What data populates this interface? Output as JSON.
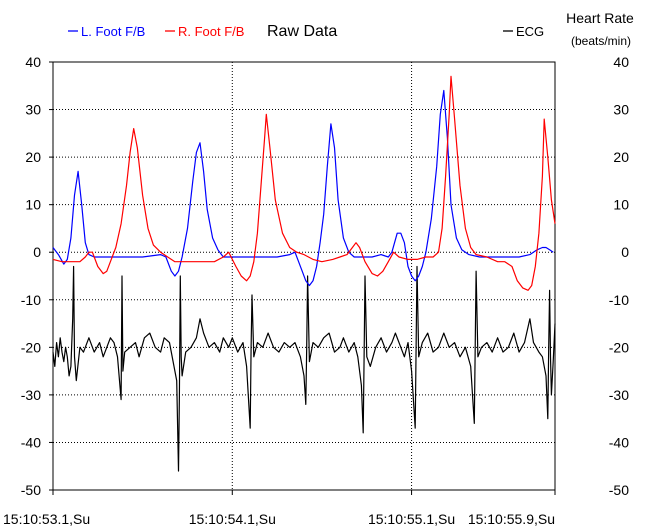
{
  "chart_data": {
    "type": "line",
    "title": "Raw Data",
    "left_ylim": [
      -50,
      40
    ],
    "right_ylim": [
      -50,
      40
    ],
    "y_ticks": [
      40,
      30,
      20,
      10,
      0,
      -10,
      -20,
      -30,
      -40,
      -50
    ],
    "right_axis_label": "Heart Rate",
    "right_axis_unit": "(beats/min)",
    "x_range": [
      53.1,
      55.9
    ],
    "x_ticks": [
      {
        "t": 53.1,
        "label": "15:10:53.1,Su"
      },
      {
        "t": 54.1,
        "label": "15:10:54.1,Su"
      },
      {
        "t": 55.1,
        "label": "15:10:55.1,Su"
      },
      {
        "t": 55.9,
        "label": "15:10:55.9,Su"
      }
    ],
    "grid": true,
    "series": [
      {
        "name": "L. Foot F/B",
        "color": "#0000ff",
        "points": [
          [
            53.1,
            1
          ],
          [
            53.13,
            -0.5
          ],
          [
            53.16,
            -2.5
          ],
          [
            53.18,
            -1.5
          ],
          [
            53.2,
            3
          ],
          [
            53.22,
            12
          ],
          [
            53.24,
            17
          ],
          [
            53.26,
            10
          ],
          [
            53.28,
            2
          ],
          [
            53.3,
            -0.5
          ],
          [
            53.33,
            -1
          ],
          [
            53.4,
            -1
          ],
          [
            53.5,
            -1
          ],
          [
            53.6,
            -1
          ],
          [
            53.7,
            -0.5
          ],
          [
            53.73,
            -1
          ],
          [
            53.76,
            -4
          ],
          [
            53.78,
            -5
          ],
          [
            53.8,
            -4
          ],
          [
            53.82,
            -1
          ],
          [
            53.85,
            5
          ],
          [
            53.88,
            15
          ],
          [
            53.9,
            21
          ],
          [
            53.92,
            23
          ],
          [
            53.94,
            17
          ],
          [
            53.96,
            9
          ],
          [
            53.99,
            3
          ],
          [
            54.02,
            0.5
          ],
          [
            54.05,
            -1
          ],
          [
            54.15,
            -1
          ],
          [
            54.25,
            -1
          ],
          [
            54.35,
            -1
          ],
          [
            54.42,
            -0.5
          ],
          [
            54.45,
            0
          ],
          [
            54.49,
            -4
          ],
          [
            54.51,
            -6
          ],
          [
            54.53,
            -7
          ],
          [
            54.55,
            -6
          ],
          [
            54.57,
            -3
          ],
          [
            54.59,
            2
          ],
          [
            54.61,
            8
          ],
          [
            54.63,
            18
          ],
          [
            54.65,
            27
          ],
          [
            54.67,
            22
          ],
          [
            54.69,
            11
          ],
          [
            54.72,
            3
          ],
          [
            54.75,
            0
          ],
          [
            54.78,
            -1
          ],
          [
            54.83,
            -1
          ],
          [
            54.88,
            -1
          ],
          [
            54.93,
            -0.5
          ],
          [
            54.97,
            -1
          ],
          [
            54.99,
            0
          ],
          [
            55.02,
            4
          ],
          [
            55.04,
            4
          ],
          [
            55.06,
            2
          ],
          [
            55.08,
            -3
          ],
          [
            55.1,
            -5
          ],
          [
            55.12,
            -6
          ],
          [
            55.14,
            -5
          ],
          [
            55.16,
            -3
          ],
          [
            55.18,
            0
          ],
          [
            55.21,
            7
          ],
          [
            55.24,
            18
          ],
          [
            55.26,
            29
          ],
          [
            55.28,
            34
          ],
          [
            55.3,
            24
          ],
          [
            55.32,
            10
          ],
          [
            55.35,
            3
          ],
          [
            55.38,
            0.5
          ],
          [
            55.42,
            -0.5
          ],
          [
            55.48,
            -1
          ],
          [
            55.55,
            -1
          ],
          [
            55.62,
            -1
          ],
          [
            55.7,
            -1
          ],
          [
            55.76,
            -0.5
          ],
          [
            55.8,
            0.5
          ],
          [
            55.83,
            1
          ],
          [
            55.85,
            1
          ],
          [
            55.87,
            0.5
          ],
          [
            55.89,
            0
          ]
        ]
      },
      {
        "name": "R. Foot F/B",
        "color": "#ff0000",
        "points": [
          [
            53.1,
            -1.5
          ],
          [
            53.15,
            -2
          ],
          [
            53.2,
            -2
          ],
          [
            53.25,
            -2
          ],
          [
            53.28,
            -1
          ],
          [
            53.3,
            0
          ],
          [
            53.32,
            0
          ],
          [
            53.35,
            -3
          ],
          [
            53.38,
            -4.5
          ],
          [
            53.4,
            -4
          ],
          [
            53.42,
            -2
          ],
          [
            53.45,
            1
          ],
          [
            53.48,
            6
          ],
          [
            53.51,
            14
          ],
          [
            53.53,
            21
          ],
          [
            53.55,
            26
          ],
          [
            53.57,
            22
          ],
          [
            53.6,
            12
          ],
          [
            53.63,
            5
          ],
          [
            53.66,
            1.5
          ],
          [
            53.7,
            0
          ],
          [
            53.74,
            -1
          ],
          [
            53.78,
            -2
          ],
          [
            53.85,
            -2
          ],
          [
            53.92,
            -2
          ],
          [
            54.0,
            -2
          ],
          [
            54.05,
            -1
          ],
          [
            54.08,
            0
          ],
          [
            54.12,
            -3
          ],
          [
            54.15,
            -5
          ],
          [
            54.18,
            -6
          ],
          [
            54.2,
            -5
          ],
          [
            54.22,
            -2
          ],
          [
            54.24,
            4
          ],
          [
            54.26,
            14
          ],
          [
            54.28,
            24
          ],
          [
            54.29,
            29
          ],
          [
            54.31,
            22
          ],
          [
            54.34,
            11
          ],
          [
            54.38,
            4
          ],
          [
            54.42,
            1
          ],
          [
            54.46,
            0
          ],
          [
            54.5,
            -0.5
          ],
          [
            54.55,
            -1.5
          ],
          [
            54.6,
            -2
          ],
          [
            54.66,
            -1.5
          ],
          [
            54.7,
            -1
          ],
          [
            54.74,
            -0.5
          ],
          [
            54.77,
            1
          ],
          [
            54.79,
            2
          ],
          [
            54.81,
            1
          ],
          [
            54.84,
            -2
          ],
          [
            54.88,
            -4.5
          ],
          [
            54.91,
            -5
          ],
          [
            54.94,
            -4
          ],
          [
            54.97,
            -2
          ],
          [
            55.0,
            0
          ],
          [
            55.03,
            -1
          ],
          [
            55.08,
            -1.5
          ],
          [
            55.13,
            -1.5
          ],
          [
            55.18,
            -1
          ],
          [
            55.22,
            -1
          ],
          [
            55.25,
            0
          ],
          [
            55.27,
            5
          ],
          [
            55.29,
            16
          ],
          [
            55.31,
            29
          ],
          [
            55.32,
            37
          ],
          [
            55.34,
            28
          ],
          [
            55.37,
            14
          ],
          [
            55.4,
            5
          ],
          [
            55.43,
            1
          ],
          [
            55.46,
            -0.5
          ],
          [
            55.52,
            -1
          ],
          [
            55.58,
            -2
          ],
          [
            55.62,
            -2
          ],
          [
            55.66,
            -3
          ],
          [
            55.69,
            -6
          ],
          [
            55.72,
            -7.5
          ],
          [
            55.75,
            -8
          ],
          [
            55.77,
            -7
          ],
          [
            55.79,
            -3
          ],
          [
            55.81,
            4
          ],
          [
            55.83,
            16
          ],
          [
            55.84,
            28
          ],
          [
            55.86,
            20
          ],
          [
            55.88,
            11
          ],
          [
            55.9,
            6
          ]
        ]
      },
      {
        "name": "ECG",
        "color": "#000000",
        "points": [
          [
            53.1,
            -21
          ],
          [
            53.11,
            -24
          ],
          [
            53.12,
            -19
          ],
          [
            53.13,
            -22
          ],
          [
            53.14,
            -18
          ],
          [
            53.15,
            -21
          ],
          [
            53.16,
            -23
          ],
          [
            53.17,
            -20
          ],
          [
            53.18,
            -22
          ],
          [
            53.19,
            -26
          ],
          [
            53.2,
            -24
          ],
          [
            53.21,
            -14
          ],
          [
            53.215,
            -3
          ],
          [
            53.22,
            -22
          ],
          [
            53.23,
            -27
          ],
          [
            53.25,
            -20
          ],
          [
            53.27,
            -21
          ],
          [
            53.3,
            -18
          ],
          [
            53.33,
            -21
          ],
          [
            53.36,
            -19
          ],
          [
            53.38,
            -22
          ],
          [
            53.4,
            -20
          ],
          [
            53.42,
            -18
          ],
          [
            53.44,
            -19
          ],
          [
            53.46,
            -22
          ],
          [
            53.48,
            -31
          ],
          [
            53.485,
            -5
          ],
          [
            53.49,
            -25
          ],
          [
            53.5,
            -21
          ],
          [
            53.53,
            -20
          ],
          [
            53.56,
            -19
          ],
          [
            53.58,
            -22
          ],
          [
            53.61,
            -18
          ],
          [
            53.64,
            -17
          ],
          [
            53.67,
            -20
          ],
          [
            53.7,
            -21
          ],
          [
            53.72,
            -18
          ],
          [
            53.75,
            -19
          ],
          [
            53.77,
            -23
          ],
          [
            53.79,
            -27
          ],
          [
            53.8,
            -46
          ],
          [
            53.805,
            -30
          ],
          [
            53.81,
            -5
          ],
          [
            53.815,
            -22
          ],
          [
            53.82,
            -26
          ],
          [
            53.84,
            -21
          ],
          [
            53.87,
            -20
          ],
          [
            53.9,
            -18
          ],
          [
            53.92,
            -14
          ],
          [
            53.94,
            -17
          ],
          [
            53.97,
            -20
          ],
          [
            54.0,
            -19
          ],
          [
            54.03,
            -21
          ],
          [
            54.05,
            -18
          ],
          [
            54.08,
            -20
          ],
          [
            54.1,
            -18
          ],
          [
            54.13,
            -21
          ],
          [
            54.16,
            -19
          ],
          [
            54.18,
            -24
          ],
          [
            54.2,
            -37
          ],
          [
            54.205,
            -20
          ],
          [
            54.21,
            -9
          ],
          [
            54.22,
            -22
          ],
          [
            54.24,
            -19
          ],
          [
            54.27,
            -20
          ],
          [
            54.3,
            -17
          ],
          [
            54.33,
            -20
          ],
          [
            54.36,
            -21
          ],
          [
            54.39,
            -19
          ],
          [
            54.42,
            -20
          ],
          [
            54.45,
            -19
          ],
          [
            54.48,
            -22
          ],
          [
            54.5,
            -26
          ],
          [
            54.51,
            -32
          ],
          [
            54.515,
            -20
          ],
          [
            54.52,
            -5
          ],
          [
            54.53,
            -23
          ],
          [
            54.55,
            -19
          ],
          [
            54.58,
            -20
          ],
          [
            54.61,
            -18
          ],
          [
            54.64,
            -17
          ],
          [
            54.67,
            -21
          ],
          [
            54.7,
            -20
          ],
          [
            54.72,
            -18
          ],
          [
            54.75,
            -21
          ],
          [
            54.78,
            -19
          ],
          [
            54.8,
            -22
          ],
          [
            54.82,
            -28
          ],
          [
            54.83,
            -38
          ],
          [
            54.835,
            -22
          ],
          [
            54.84,
            -5
          ],
          [
            54.85,
            -22
          ],
          [
            54.87,
            -24
          ],
          [
            54.9,
            -20
          ],
          [
            54.93,
            -18
          ],
          [
            54.96,
            -21
          ],
          [
            54.99,
            -19
          ],
          [
            55.01,
            -17
          ],
          [
            55.04,
            -20
          ],
          [
            55.06,
            -22
          ],
          [
            55.08,
            -19
          ],
          [
            55.1,
            -25
          ],
          [
            55.12,
            -37
          ],
          [
            55.125,
            -20
          ],
          [
            55.13,
            -3
          ],
          [
            55.14,
            -22
          ],
          [
            55.16,
            -19
          ],
          [
            55.19,
            -17
          ],
          [
            55.22,
            -21
          ],
          [
            55.25,
            -20
          ],
          [
            55.28,
            -17
          ],
          [
            55.31,
            -20
          ],
          [
            55.34,
            -19
          ],
          [
            55.37,
            -22
          ],
          [
            55.4,
            -20
          ],
          [
            55.43,
            -24
          ],
          [
            55.45,
            -36
          ],
          [
            55.455,
            -20
          ],
          [
            55.46,
            -4
          ],
          [
            55.47,
            -22
          ],
          [
            55.49,
            -20
          ],
          [
            55.52,
            -19
          ],
          [
            55.55,
            -21
          ],
          [
            55.58,
            -18
          ],
          [
            55.61,
            -21
          ],
          [
            55.64,
            -20
          ],
          [
            55.67,
            -17
          ],
          [
            55.7,
            -21
          ],
          [
            55.73,
            -19
          ],
          [
            55.76,
            -14
          ],
          [
            55.78,
            -19
          ],
          [
            55.81,
            -21
          ],
          [
            55.83,
            -22
          ],
          [
            55.85,
            -26
          ],
          [
            55.86,
            -35
          ],
          [
            55.865,
            -20
          ],
          [
            55.87,
            -8
          ],
          [
            55.875,
            -22
          ],
          [
            55.88,
            -30
          ],
          [
            55.89,
            -23
          ],
          [
            55.9,
            -15
          ]
        ]
      }
    ]
  }
}
